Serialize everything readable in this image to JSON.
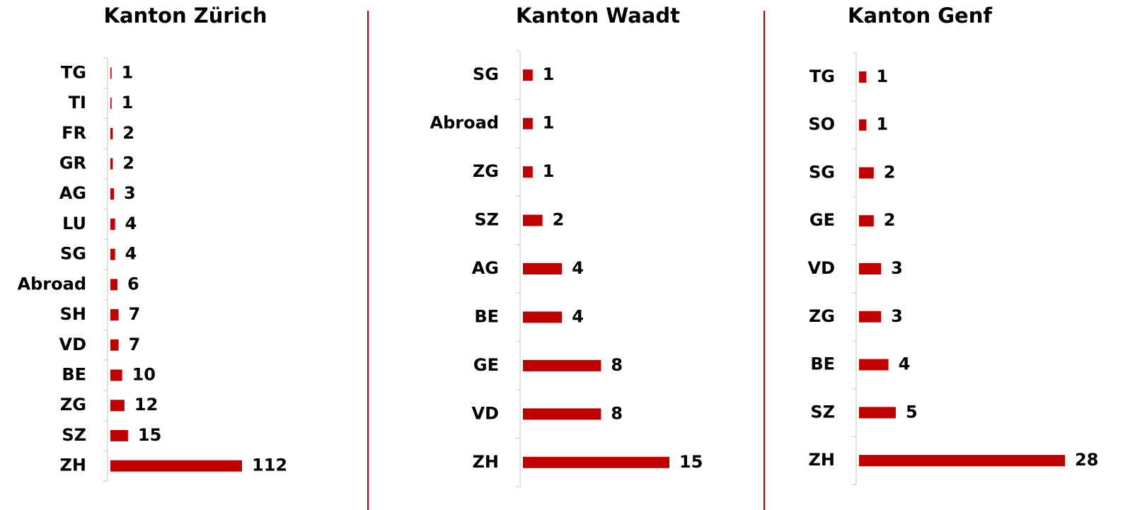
{
  "chart_data": [
    {
      "type": "bar",
      "orientation": "horizontal",
      "title": "Kanton Zürich",
      "color": "#c00000",
      "categories": [
        "TG",
        "TI",
        "FR",
        "GR",
        "AG",
        "LU",
        "SG",
        "Abroad",
        "SH",
        "VD",
        "BE",
        "ZG",
        "SZ",
        "ZH"
      ],
      "values": [
        1,
        1,
        2,
        2,
        3,
        4,
        4,
        6,
        7,
        7,
        10,
        12,
        15,
        112
      ],
      "xlim": [
        0,
        112
      ]
    },
    {
      "type": "bar",
      "orientation": "horizontal",
      "title": "Kanton Waadt",
      "color": "#c00000",
      "categories": [
        "SG",
        "Abroad",
        "ZG",
        "SZ",
        "AG",
        "BE",
        "GE",
        "VD",
        "ZH"
      ],
      "values": [
        1,
        1,
        1,
        2,
        4,
        4,
        8,
        8,
        15
      ],
      "xlim": [
        0,
        15
      ]
    },
    {
      "type": "bar",
      "orientation": "horizontal",
      "title": "Kanton Genf",
      "color": "#c00000",
      "categories": [
        "TG",
        "SO",
        "SG",
        "GE",
        "VD",
        "ZG",
        "BE",
        "SZ",
        "ZH"
      ],
      "values": [
        1,
        1,
        2,
        2,
        3,
        3,
        4,
        5,
        28
      ],
      "xlim": [
        0,
        28
      ]
    }
  ]
}
